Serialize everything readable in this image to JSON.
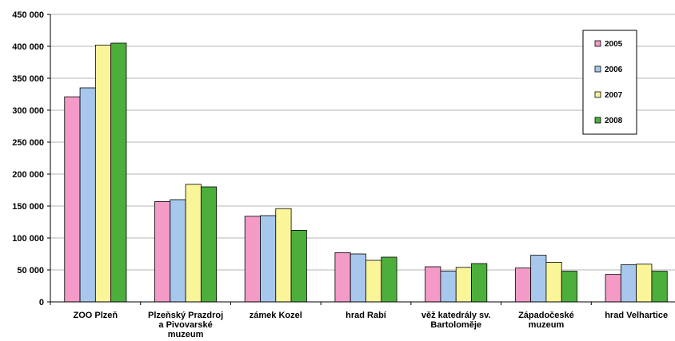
{
  "chart_data": {
    "type": "bar",
    "title": "",
    "xlabel": "",
    "ylabel": "",
    "ylim": [
      0,
      450000
    ],
    "yticks": [
      0,
      50000,
      100000,
      150000,
      200000,
      250000,
      300000,
      350000,
      400000,
      450000
    ],
    "ytick_labels": [
      "0",
      "50 000",
      "100 000",
      "150 000",
      "200 000",
      "250 000",
      "300 000",
      "350 000",
      "400 000",
      "450 000"
    ],
    "grid": true,
    "legend_position": "top-right",
    "categories": [
      [
        "ZOO Plzeň"
      ],
      [
        "Plzeňský Prazdroj",
        "a Pivovarské",
        "muzeum"
      ],
      [
        "zámek Kozel"
      ],
      [
        "hrad Rabí"
      ],
      [
        "věž katedrály sv.",
        "Bartoloměje"
      ],
      [
        "Západočeské",
        "muzeum"
      ],
      [
        "hrad Velhartice"
      ]
    ],
    "series": [
      {
        "name": "2005",
        "color": "#f39ac6",
        "values": [
          321000,
          157000,
          134000,
          77000,
          55000,
          53000,
          43000
        ]
      },
      {
        "name": "2006",
        "color": "#a7c8ec",
        "values": [
          335000,
          160000,
          135000,
          75000,
          48000,
          73000,
          58000
        ]
      },
      {
        "name": "2007",
        "color": "#fbf59a",
        "values": [
          402000,
          184000,
          146000,
          65000,
          54000,
          62000,
          59000
        ]
      },
      {
        "name": "2008",
        "color": "#4caf3c",
        "values": [
          405000,
          180000,
          112000,
          70000,
          60000,
          48000,
          48000
        ]
      }
    ]
  }
}
